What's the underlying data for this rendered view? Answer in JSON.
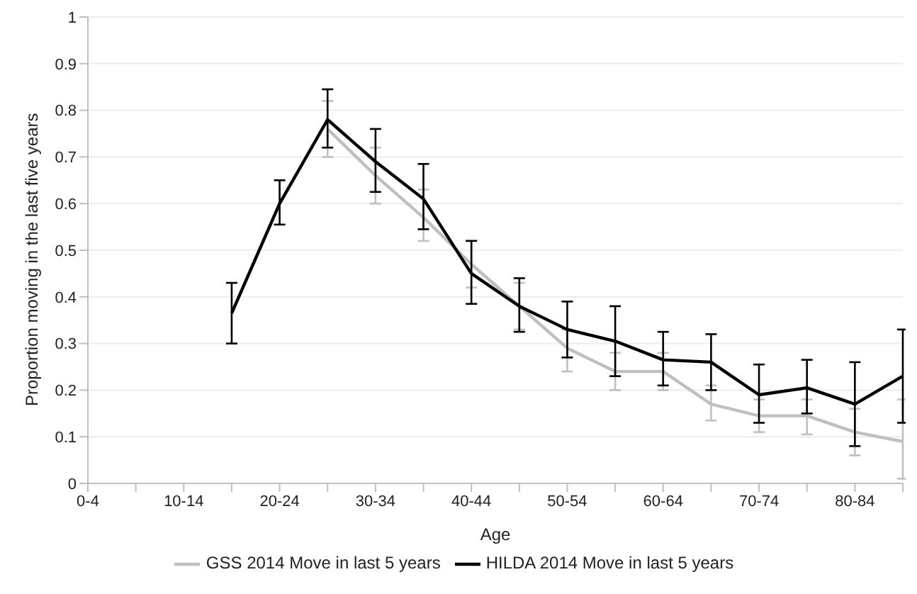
{
  "chart_data": {
    "type": "line",
    "xlabel": "Age",
    "ylabel": "Proportion moving in the last five years",
    "categories": [
      "0-4",
      null,
      "10-14",
      null,
      "20-24",
      null,
      "30-34",
      null,
      "40-44",
      null,
      "50-54",
      null,
      "60-64",
      null,
      "70-74",
      null,
      "80-84",
      null
    ],
    "series": [
      {
        "name": "GSS 2014 Move in last 5 years",
        "color": "#bfbfbf",
        "values": [
          null,
          null,
          null,
          null,
          null,
          0.76,
          0.66,
          0.57,
          0.47,
          0.38,
          0.29,
          0.24,
          0.24,
          0.17,
          0.145,
          0.145,
          0.11,
          0.09
        ],
        "errors": [
          null,
          null,
          null,
          null,
          null,
          [
            0.7,
            0.82
          ],
          [
            0.6,
            0.72
          ],
          [
            0.52,
            0.63
          ],
          [
            0.42,
            0.52
          ],
          [
            0.33,
            0.43
          ],
          [
            0.24,
            0.33
          ],
          [
            0.2,
            0.28
          ],
          [
            0.2,
            0.28
          ],
          [
            0.135,
            0.21
          ],
          [
            0.11,
            0.18
          ],
          [
            0.105,
            0.18
          ],
          [
            0.06,
            0.16
          ],
          [
            0.01,
            0.18
          ]
        ]
      },
      {
        "name": "HILDA 2014 Move in last 5 years",
        "color": "#000000",
        "values": [
          null,
          null,
          null,
          0.365,
          0.6,
          0.78,
          0.69,
          0.61,
          0.45,
          0.38,
          0.33,
          0.305,
          0.265,
          0.26,
          0.19,
          0.205,
          0.17,
          0.23
        ],
        "errors": [
          null,
          null,
          null,
          [
            0.3,
            0.43
          ],
          [
            0.555,
            0.65
          ],
          [
            0.72,
            0.845
          ],
          [
            0.625,
            0.76
          ],
          [
            0.545,
            0.685
          ],
          [
            0.385,
            0.52
          ],
          [
            0.325,
            0.44
          ],
          [
            0.27,
            0.39
          ],
          [
            0.23,
            0.38
          ],
          [
            0.21,
            0.325
          ],
          [
            0.2,
            0.32
          ],
          [
            0.13,
            0.255
          ],
          [
            0.15,
            0.265
          ],
          [
            0.08,
            0.26
          ],
          [
            0.13,
            0.33
          ]
        ]
      }
    ],
    "ylim": [
      0,
      1
    ],
    "yticks": [
      0,
      0.1,
      0.2,
      0.3,
      0.4,
      0.5,
      0.6,
      0.7,
      0.8,
      0.9,
      1
    ],
    "grid": "y",
    "legend": "bottom",
    "marker": "none",
    "line_style": "solid"
  }
}
